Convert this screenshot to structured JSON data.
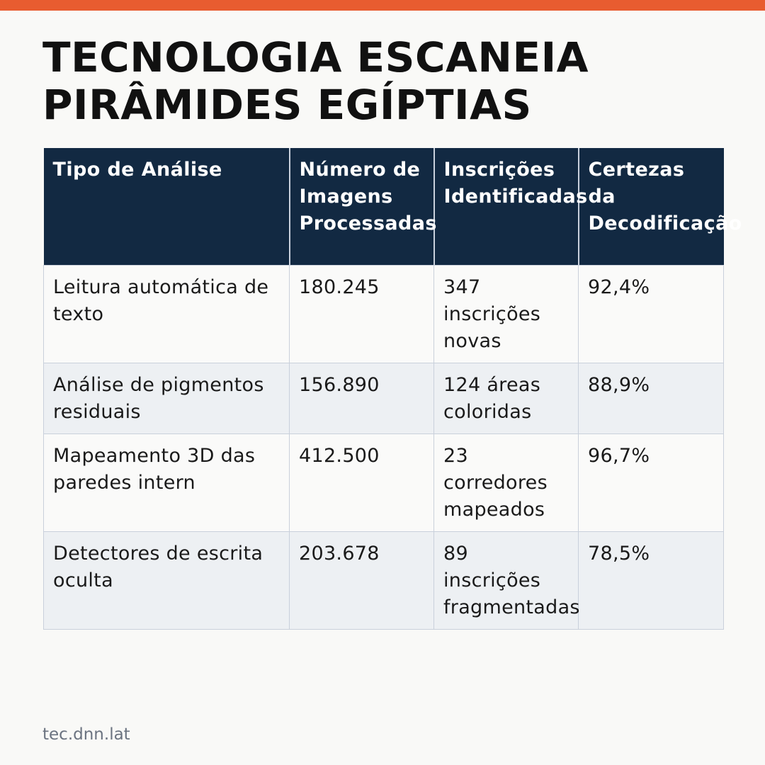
{
  "colors": {
    "accent_bar": "#e85c30",
    "header_bg": "#122942",
    "row_alt_bg": "#edf0f3"
  },
  "title": "TECNOLOGIA ESCANEIA PIRÂMIDES EGÍPTIAS",
  "table": {
    "headers": [
      "Tipo de Análise",
      "Número de Imagens Processadas",
      "Inscrições Identificadas",
      "Certezas da Decodificação"
    ],
    "rows": [
      [
        "Leitura automática de texto",
        "180.245",
        "347 inscrições novas",
        "92,4%"
      ],
      [
        "Análise de pigmentos residuais",
        "156.890",
        "124 áreas coloridas",
        "88,9%"
      ],
      [
        "Mapeamento 3D das paredes intern",
        "412.500",
        "23 corredores mapeados",
        "96,7%"
      ],
      [
        "Detectores de escrita oculta",
        "203.678",
        "89 inscrições fragmentadas",
        "78,5%"
      ]
    ]
  },
  "footer": "tec.dnn.lat"
}
